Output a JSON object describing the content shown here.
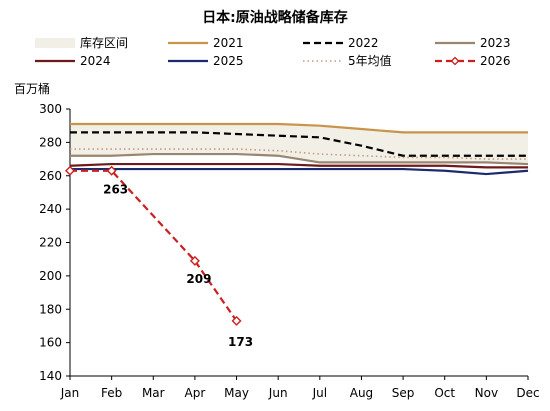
{
  "chart_data": {
    "type": "line",
    "title": "日本:原油战略储备库存",
    "ylabel": "百万桶",
    "xlabel": "",
    "categories": [
      "Jan",
      "Feb",
      "Mar",
      "Apr",
      "May",
      "Jun",
      "Jul",
      "Aug",
      "Sep",
      "Oct",
      "Nov",
      "Dec"
    ],
    "ylim": [
      140,
      300
    ],
    "yticks": [
      140,
      160,
      180,
      200,
      220,
      240,
      260,
      280,
      300
    ],
    "grid": false,
    "legend_position": "top",
    "band": {
      "name": "库存区间",
      "color": "#f2f0e6",
      "low": [
        272,
        272,
        273,
        273,
        273,
        272,
        268,
        268,
        268,
        268,
        268,
        267
      ],
      "high": [
        291,
        291,
        291,
        291,
        291,
        291,
        290,
        288,
        286,
        286,
        286,
        286
      ]
    },
    "series": [
      {
        "name": "2021",
        "color": "#c8944a",
        "dash": "solid",
        "width": 2.2,
        "values": [
          291,
          291,
          291,
          291,
          291,
          291,
          290,
          288,
          286,
          286,
          286,
          286
        ]
      },
      {
        "name": "2022",
        "color": "#000000",
        "dash": "dashed",
        "width": 2.2,
        "values": [
          286,
          286,
          286,
          286,
          285,
          284,
          283,
          278,
          272,
          272,
          272,
          272
        ]
      },
      {
        "name": "2023",
        "color": "#9a8570",
        "dash": "solid",
        "width": 2.2,
        "values": [
          272,
          272,
          273,
          273,
          273,
          272,
          268,
          268,
          268,
          268,
          268,
          267
        ]
      },
      {
        "name": "2024",
        "color": "#6e1a1a",
        "dash": "solid",
        "width": 2.2,
        "values": [
          266,
          267,
          267,
          267,
          267,
          267,
          266,
          266,
          266,
          266,
          265,
          265
        ]
      },
      {
        "name": "2025",
        "color": "#1a2a6e",
        "dash": "solid",
        "width": 2.2,
        "values": [
          264,
          264,
          264,
          264,
          264,
          264,
          264,
          264,
          264,
          263,
          261,
          263
        ]
      },
      {
        "name": "5年均值",
        "color": "#c39b80",
        "dash": "dotted",
        "width": 1.6,
        "values": [
          276,
          276,
          276,
          276,
          276,
          275,
          273,
          272,
          271,
          271,
          270,
          270
        ]
      },
      {
        "name": "2026",
        "color": "#cc1f1f",
        "dash": "dashed",
        "width": 2.2,
        "marker": "diamond",
        "values": [
          263,
          263,
          null,
          209,
          173,
          null,
          null,
          null,
          null,
          null,
          null,
          null
        ]
      }
    ],
    "data_labels": [
      {
        "text": "263",
        "series": "2026",
        "index": 1
      },
      {
        "text": "209",
        "series": "2026",
        "index": 3
      },
      {
        "text": "173",
        "series": "2026",
        "index": 4
      }
    ]
  }
}
